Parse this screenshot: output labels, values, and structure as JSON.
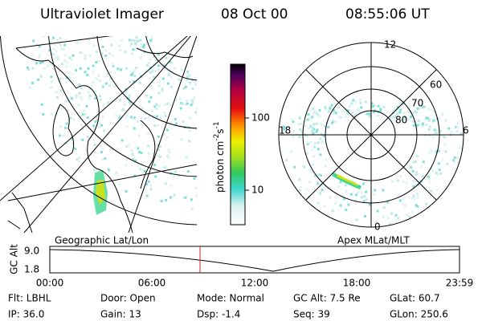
{
  "header": {
    "title": "Ultraviolet Imager",
    "date": "08 Oct 00",
    "time": "08:55:06 UT"
  },
  "colorbar": {
    "ticks": [
      "100",
      "10"
    ],
    "unit": {
      "base": "photon cm",
      "exp1": "-2",
      "mid": "s",
      "exp2": "-1"
    }
  },
  "maps": {
    "left_label": "Geographic Lat/Lon",
    "right_label": "Apex MLat/MLT"
  },
  "polar": {
    "mlt_labels": [
      "12",
      "18",
      "6",
      "0"
    ],
    "lat_labels": [
      "60",
      "70",
      "80"
    ]
  },
  "altitude": {
    "axis_label": "GC Alt",
    "ticks": [
      "9.0",
      "1.8"
    ],
    "time_labels": [
      "00:00",
      "06:00",
      "12:00",
      "18:00",
      "23:59"
    ]
  },
  "info": {
    "rows": [
      [
        "Flt: LBHL",
        "Door: Open",
        "Mode: Normal",
        "GC Alt: 7.5 Re",
        "GLat: 60.7"
      ],
      [
        "IP: 36.0",
        "Gain: 13",
        "Dsp: -1.4",
        "Seq: 39",
        "GLon: 250.6"
      ]
    ]
  }
}
